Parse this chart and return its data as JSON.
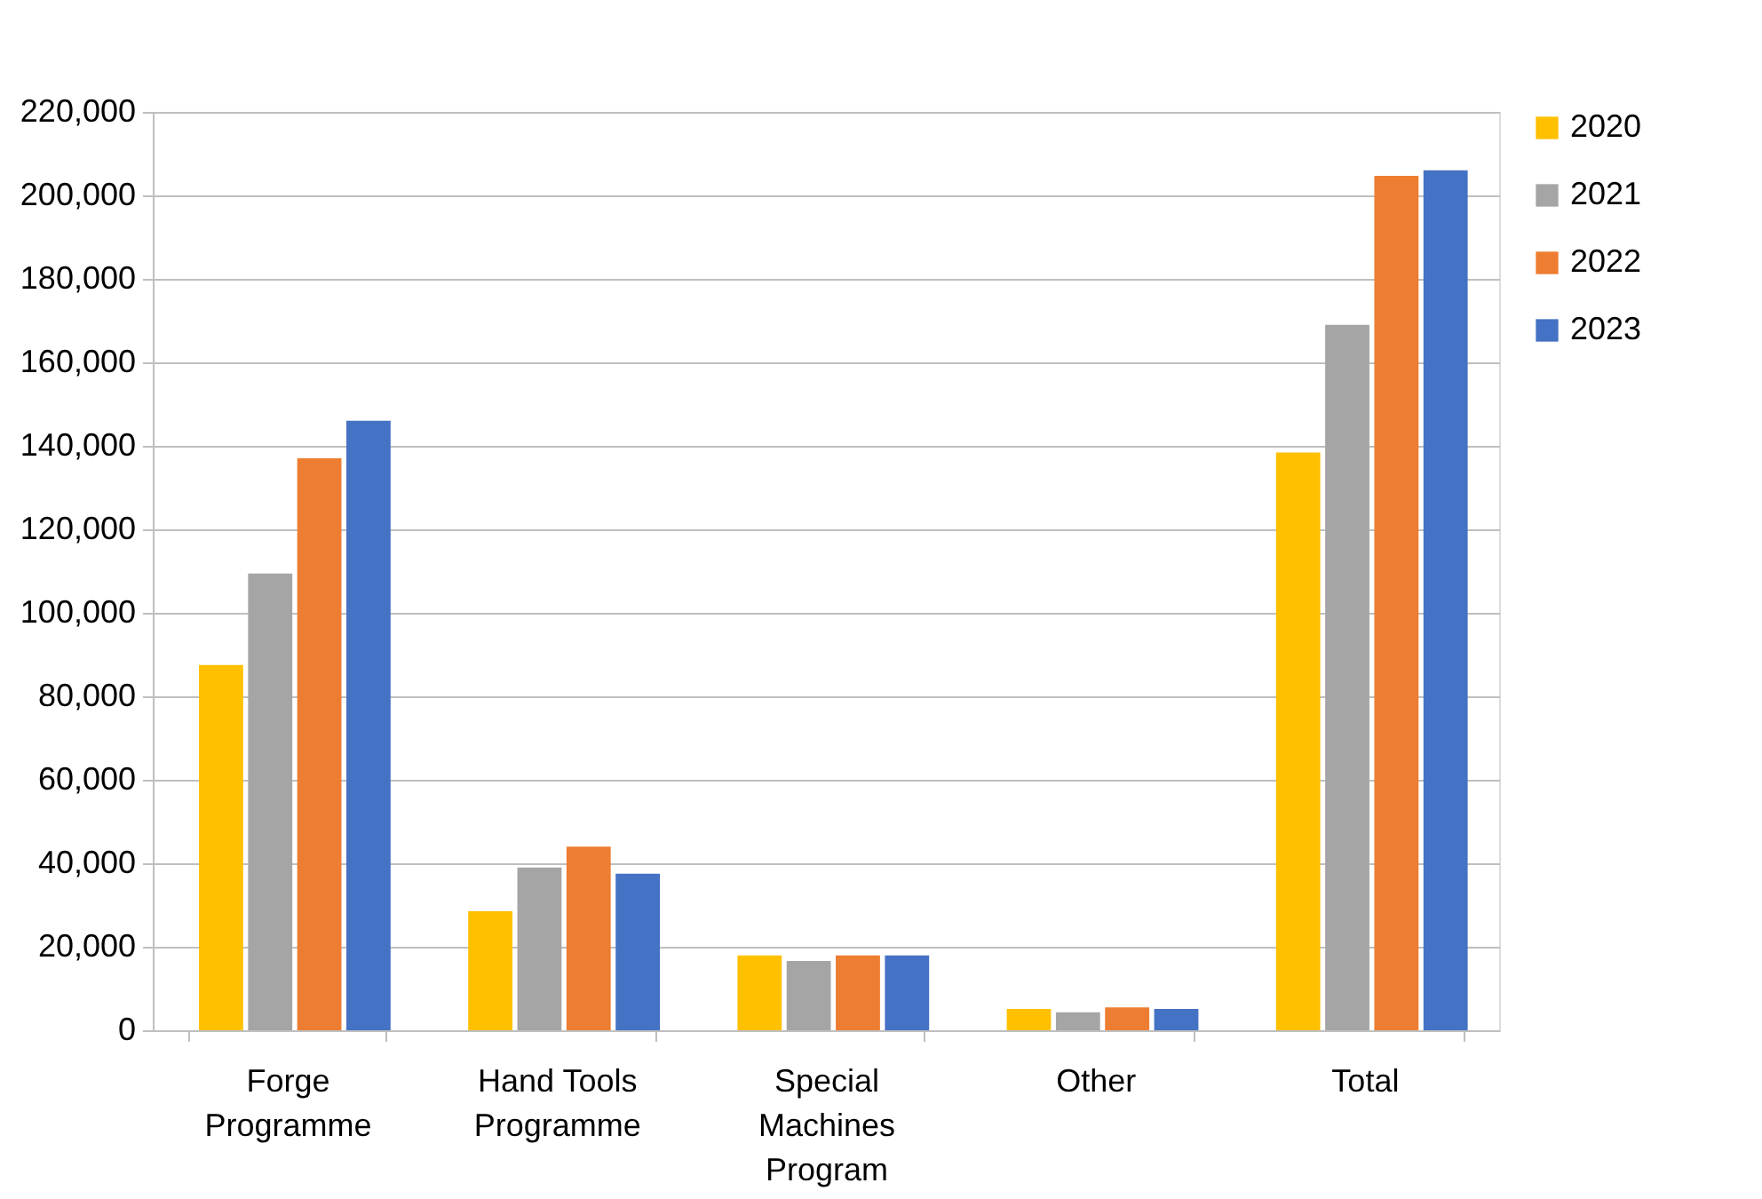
{
  "chart_data": {
    "type": "bar",
    "categories": [
      "Forge Programme",
      "Hand Tools Programme",
      "Special Machines Program",
      "Other",
      "Total"
    ],
    "series": [
      {
        "name": "2020",
        "color": "#ffc000",
        "values": [
          87500,
          28500,
          17900,
          5100,
          138400
        ]
      },
      {
        "name": "2021",
        "color": "#a5a5a5",
        "values": [
          109400,
          39000,
          16600,
          4300,
          169000
        ]
      },
      {
        "name": "2022",
        "color": "#ed7d31",
        "values": [
          137000,
          44000,
          17900,
          5500,
          204700
        ]
      },
      {
        "name": "2023",
        "color": "#4472c4",
        "values": [
          146000,
          37500,
          17900,
          5100,
          206000
        ]
      }
    ],
    "ylim": [
      0,
      220000
    ],
    "yticks": [
      {
        "value": 0,
        "label": "0"
      },
      {
        "value": 20000,
        "label": "20,000"
      },
      {
        "value": 40000,
        "label": "40,000"
      },
      {
        "value": 60000,
        "label": "60,000"
      },
      {
        "value": 80000,
        "label": "80,000"
      },
      {
        "value": 100000,
        "label": "100,000"
      },
      {
        "value": 120000,
        "label": "120,000"
      },
      {
        "value": 140000,
        "label": "140,000"
      },
      {
        "value": 160000,
        "label": "160,000"
      },
      {
        "value": 180000,
        "label": "180,000"
      },
      {
        "value": 200000,
        "label": "200,000"
      },
      {
        "value": 220000,
        "label": "220,000"
      }
    ],
    "grid": "y",
    "legend": "right"
  }
}
